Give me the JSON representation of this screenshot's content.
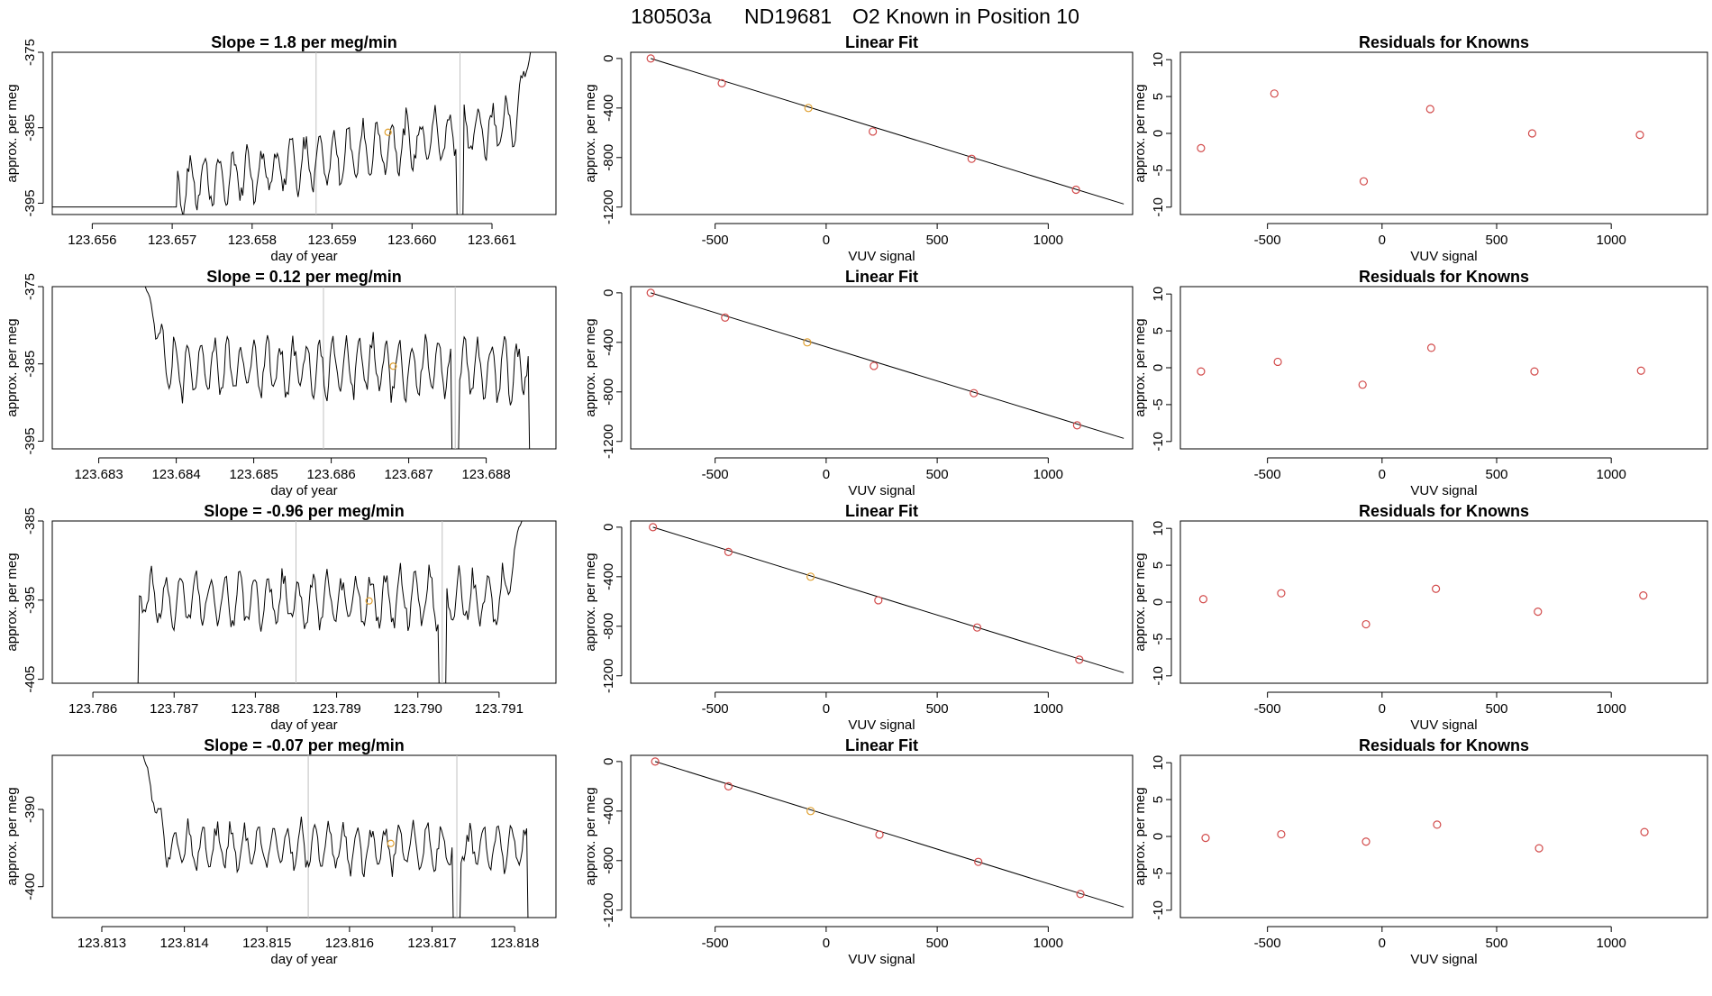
{
  "figure": {
    "title": {
      "run": "180503a",
      "tank": "ND19681",
      "text": "O2 Known in Position  10"
    }
  },
  "colors": {
    "trace": "#000000",
    "known_point": "#d24b4b",
    "highlight_point": "#e0a030",
    "vline": "#c0c0c0"
  },
  "chart_data": [
    {
      "type": "line",
      "row": 0,
      "col": 0,
      "title": "Slope =  1.8  per meg/min",
      "xlabel": "day of year",
      "ylabel": "approx. per meg",
      "xlim": [
        123.6555,
        123.6618
      ],
      "ylim": [
        -396.5,
        -375
      ],
      "xticks": [
        123.656,
        123.657,
        123.658,
        123.659,
        123.66,
        123.661
      ],
      "xtick_labels": [
        "123.656",
        "123.657",
        "123.658",
        "123.659",
        "123.660",
        "123.661"
      ],
      "yticks": [
        -375,
        -385,
        -395
      ],
      "ytick_labels": [
        "-375",
        "-385",
        "-395"
      ],
      "vlines": [
        123.6588,
        123.6606
      ],
      "highlight": {
        "x": 123.6597,
        "y": -385.6
      },
      "trace": {
        "x_start": 123.657,
        "x_end": 123.6615,
        "base": -395.5,
        "trend": [
          -393,
          -384
        ],
        "amp": 3.2,
        "period": 0.00018,
        "end_spike": -374
      }
    },
    {
      "type": "scatter",
      "row": 0,
      "col": 1,
      "title": "Linear Fit",
      "xlabel": "VUV signal",
      "ylabel": "approx. per meg",
      "xlim": [
        -880,
        1380
      ],
      "ylim": [
        -1260,
        50
      ],
      "xticks": [
        -500,
        0,
        500,
        1000
      ],
      "xtick_labels": [
        "-500",
        "0",
        "500",
        "1000"
      ],
      "yticks": [
        0,
        -400,
        -800,
        -1200
      ],
      "ytick_labels": [
        "0",
        "-400",
        "-800",
        "-1200"
      ],
      "points_x": [
        -790,
        -470,
        -80,
        210,
        655,
        1125
      ],
      "points_y": [
        0,
        -200,
        -400,
        -590,
        -810,
        -1060
      ],
      "highlight_index": 2,
      "fit_line": {
        "x": [
          -790,
          1340
        ],
        "y": [
          0,
          -1175
        ]
      }
    },
    {
      "type": "scatter",
      "row": 0,
      "col": 2,
      "title": "Residuals for Knowns",
      "xlabel": "VUV signal",
      "ylabel": "approx. per meg",
      "xlim": [
        -880,
        1420
      ],
      "ylim": [
        -11,
        11
      ],
      "xticks": [
        -500,
        0,
        500,
        1000
      ],
      "xtick_labels": [
        "-500",
        "0",
        "500",
        "1000"
      ],
      "yticks": [
        10,
        5,
        0,
        -5,
        -10
      ],
      "ytick_labels": [
        "10",
        "5",
        "0",
        "-5",
        "-10"
      ],
      "points_x": [
        -790,
        -470,
        -80,
        210,
        655,
        1125
      ],
      "points_y": [
        -2.0,
        5.4,
        -6.5,
        3.3,
        0.0,
        -0.2
      ]
    },
    {
      "type": "line",
      "row": 1,
      "col": 0,
      "title": "Slope =  0.12  per meg/min",
      "xlabel": "day of year",
      "ylabel": "approx. per meg",
      "xlim": [
        123.6824,
        123.6889
      ],
      "ylim": [
        -396,
        -375
      ],
      "xticks": [
        123.683,
        123.684,
        123.685,
        123.686,
        123.687,
        123.688
      ],
      "xtick_labels": [
        "123.683",
        "123.684",
        "123.685",
        "123.686",
        "123.687",
        "123.688"
      ],
      "yticks": [
        -375,
        -385,
        -395
      ],
      "ytick_labels": [
        "-375",
        "-385",
        "-395"
      ],
      "vlines": [
        123.6859,
        123.6876
      ],
      "highlight": {
        "x": 123.6868,
        "y": -385.3
      },
      "trace": {
        "x_start": 123.6836,
        "x_end": 123.6886,
        "base": -396,
        "trend": [
          -385.5,
          -385.5
        ],
        "amp": 3.4,
        "period": 0.00017,
        "start_spike": -375
      }
    },
    {
      "type": "scatter",
      "row": 1,
      "col": 1,
      "title": "Linear Fit",
      "xlabel": "VUV signal",
      "ylabel": "approx. per meg",
      "xlim": [
        -880,
        1380
      ],
      "ylim": [
        -1260,
        50
      ],
      "xticks": [
        -500,
        0,
        500,
        1000
      ],
      "xtick_labels": [
        "-500",
        "0",
        "500",
        "1000"
      ],
      "yticks": [
        0,
        -400,
        -800,
        -1200
      ],
      "ytick_labels": [
        "0",
        "-400",
        "-800",
        "-1200"
      ],
      "points_x": [
        -790,
        -455,
        -85,
        215,
        665,
        1130
      ],
      "points_y": [
        0,
        -200,
        -400,
        -590,
        -810,
        -1070
      ],
      "highlight_index": 2,
      "fit_line": {
        "x": [
          -790,
          1340
        ],
        "y": [
          0,
          -1175
        ]
      }
    },
    {
      "type": "scatter",
      "row": 1,
      "col": 2,
      "title": "Residuals for Knowns",
      "xlabel": "VUV signal",
      "ylabel": "approx. per meg",
      "xlim": [
        -880,
        1420
      ],
      "ylim": [
        -11,
        11
      ],
      "xticks": [
        -500,
        0,
        500,
        1000
      ],
      "xtick_labels": [
        "-500",
        "0",
        "500",
        "1000"
      ],
      "yticks": [
        10,
        5,
        0,
        -5,
        -10
      ],
      "ytick_labels": [
        "10",
        "5",
        "0",
        "-5",
        "-10"
      ],
      "points_x": [
        -790,
        -455,
        -85,
        215,
        665,
        1130
      ],
      "points_y": [
        -0.5,
        0.8,
        -2.3,
        2.7,
        -0.5,
        -0.4
      ]
    },
    {
      "type": "line",
      "row": 2,
      "col": 0,
      "title": "Slope =  -0.96  per meg/min",
      "xlabel": "day of year",
      "ylabel": "approx. per meg",
      "xlim": [
        123.7855,
        123.7917
      ],
      "ylim": [
        -405.5,
        -385
      ],
      "xticks": [
        123.786,
        123.787,
        123.788,
        123.789,
        123.79,
        123.791
      ],
      "xtick_labels": [
        "123.786",
        "123.787",
        "123.788",
        "123.789",
        "123.790",
        "123.791"
      ],
      "yticks": [
        -385,
        -395,
        -405
      ],
      "ytick_labels": [
        "-385",
        "-395",
        "-405"
      ],
      "vlines": [
        123.7885,
        123.7903
      ],
      "highlight": {
        "x": 123.7894,
        "y": -395.1
      },
      "trace": {
        "x_start": 123.7865,
        "x_end": 123.7913,
        "base": -405.5,
        "trend": [
          -395,
          -395
        ],
        "amp": 3.0,
        "period": 0.00018,
        "end_spike": -384
      }
    },
    {
      "type": "scatter",
      "row": 2,
      "col": 1,
      "title": "Linear Fit",
      "xlabel": "VUV signal",
      "ylabel": "approx. per meg",
      "xlim": [
        -880,
        1380
      ],
      "ylim": [
        -1260,
        50
      ],
      "xticks": [
        -500,
        0,
        500,
        1000
      ],
      "xtick_labels": [
        "-500",
        "0",
        "500",
        "1000"
      ],
      "yticks": [
        0,
        -400,
        -800,
        -1200
      ],
      "ytick_labels": [
        "0",
        "-400",
        "-800",
        "-1200"
      ],
      "points_x": [
        -780,
        -440,
        -70,
        235,
        680,
        1140
      ],
      "points_y": [
        0,
        -200,
        -400,
        -590,
        -810,
        -1070
      ],
      "highlight_index": 2,
      "fit_line": {
        "x": [
          -780,
          1340
        ],
        "y": [
          0,
          -1175
        ]
      }
    },
    {
      "type": "scatter",
      "row": 2,
      "col": 2,
      "title": "Residuals for Knowns",
      "xlabel": "VUV signal",
      "ylabel": "approx. per meg",
      "xlim": [
        -880,
        1420
      ],
      "ylim": [
        -11,
        11
      ],
      "xticks": [
        -500,
        0,
        500,
        1000
      ],
      "xtick_labels": [
        "-500",
        "0",
        "500",
        "1000"
      ],
      "yticks": [
        10,
        5,
        0,
        -5,
        -10
      ],
      "ytick_labels": [
        "10",
        "5",
        "0",
        "-5",
        "-10"
      ],
      "points_x": [
        -780,
        -440,
        -70,
        235,
        680,
        1140
      ],
      "points_y": [
        0.4,
        1.2,
        -3.0,
        1.8,
        -1.3,
        0.9
      ]
    },
    {
      "type": "line",
      "row": 3,
      "col": 0,
      "title": "Slope =  -0.07  per meg/min",
      "xlabel": "day of year",
      "ylabel": "approx. per meg",
      "xlim": [
        123.8124,
        123.8185
      ],
      "ylim": [
        -404,
        -383
      ],
      "xticks": [
        123.813,
        123.814,
        123.815,
        123.816,
        123.817,
        123.818
      ],
      "xtick_labels": [
        "123.813",
        "123.814",
        "123.815",
        "123.816",
        "123.817",
        "123.818"
      ],
      "yticks": [
        -390,
        -400
      ],
      "ytick_labels": [
        "-390",
        "-400"
      ],
      "vlines": [
        123.8155,
        123.8173
      ],
      "highlight": {
        "x": 123.8165,
        "y": -394.4
      },
      "trace": {
        "x_start": 123.8135,
        "x_end": 123.8182,
        "base": -404,
        "trend": [
          -395,
          -395
        ],
        "amp": 2.6,
        "period": 0.00017,
        "start_spike": -383
      }
    },
    {
      "type": "scatter",
      "row": 3,
      "col": 1,
      "title": "Linear Fit",
      "xlabel": "VUV signal",
      "ylabel": "approx. per meg",
      "xlim": [
        -880,
        1380
      ],
      "ylim": [
        -1260,
        50
      ],
      "xticks": [
        -500,
        0,
        500,
        1000
      ],
      "xtick_labels": [
        "-500",
        "0",
        "500",
        "1000"
      ],
      "yticks": [
        0,
        -400,
        -800,
        -1200
      ],
      "ytick_labels": [
        "0",
        "-400",
        "-800",
        "-1200"
      ],
      "points_x": [
        -770,
        -440,
        -70,
        240,
        685,
        1145
      ],
      "points_y": [
        0,
        -200,
        -400,
        -590,
        -810,
        -1070
      ],
      "highlight_index": 2,
      "fit_line": {
        "x": [
          -770,
          1340
        ],
        "y": [
          0,
          -1175
        ]
      }
    },
    {
      "type": "scatter",
      "row": 3,
      "col": 2,
      "title": "Residuals for Knowns",
      "xlabel": "VUV signal",
      "ylabel": "approx. per meg",
      "xlim": [
        -880,
        1420
      ],
      "ylim": [
        -11,
        11
      ],
      "xticks": [
        -500,
        0,
        500,
        1000
      ],
      "xtick_labels": [
        "-500",
        "0",
        "500",
        "1000"
      ],
      "yticks": [
        10,
        5,
        0,
        -5,
        -10
      ],
      "ytick_labels": [
        "10",
        "5",
        "0",
        "-5",
        "-10"
      ],
      "points_x": [
        -770,
        -440,
        -70,
        240,
        685,
        1145
      ],
      "points_y": [
        -0.2,
        0.3,
        -0.7,
        1.6,
        -1.6,
        0.6
      ]
    }
  ]
}
